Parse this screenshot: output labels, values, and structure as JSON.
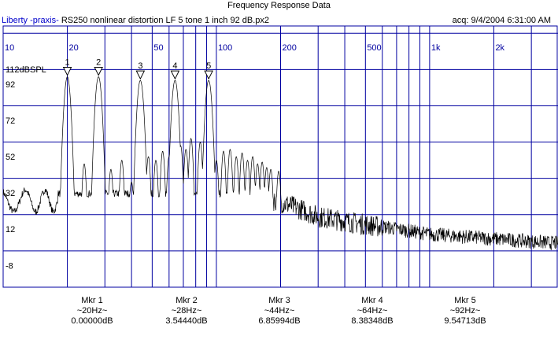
{
  "window": {
    "title": "Frequency Response Data",
    "app_name": "Liberty -praxis-",
    "file_name": "RS250 nonlinear distortion LF 5 tone 1 inch 92 dB.px2",
    "acquired": "acq: 9/4/2004 6:31:00 AM"
  },
  "plot": {
    "x_scale": "log",
    "x_range": [
      10,
      4000
    ],
    "y_range": [
      -20,
      124
    ],
    "y_ref_label": "112dBSPL",
    "x_tick_labels": [
      "10",
      "20",
      "50",
      "100",
      "200",
      "500",
      "1k",
      "2k"
    ],
    "y_tick_labels": [
      "92",
      "72",
      "52",
      "32",
      "12",
      "-8"
    ],
    "colors": {
      "grid": "#0000a0",
      "trace": "#000000",
      "marker": "#000000",
      "app_name": "#0000cc"
    }
  },
  "markers": [
    {
      "number": "1",
      "label": "Mkr 1",
      "freq": "~20Hz~",
      "level": "0.00000dB"
    },
    {
      "number": "2",
      "label": "Mkr 2",
      "freq": "~28Hz~",
      "level": "3.54440dB"
    },
    {
      "number": "3",
      "label": "Mkr 3",
      "freq": "~44Hz~",
      "level": "6.85994dB"
    },
    {
      "number": "4",
      "label": "Mkr 4",
      "freq": "~64Hz~",
      "level": "8.38348dB"
    },
    {
      "number": "5",
      "label": "Mkr 5",
      "freq": "~92Hz~",
      "level": "9.54713dB"
    }
  ]
}
